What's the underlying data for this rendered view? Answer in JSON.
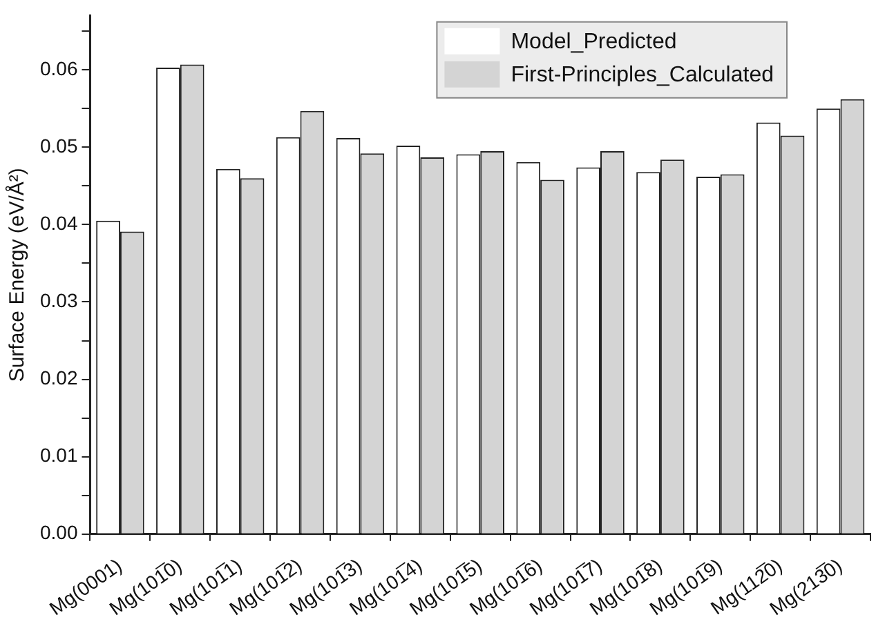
{
  "chart_data": {
    "type": "bar",
    "ylabel": "Surface Energy (eV/Å²)",
    "categories": [
      "Mg(0001)",
      "Mg(101̅0)",
      "Mg(101̅1)",
      "Mg(101̅2)",
      "Mg(101̅3)",
      "Mg(101̅4)",
      "Mg(101̅5)",
      "Mg(101̅6)",
      "Mg(101̅7)",
      "Mg(101̅8)",
      "Mg(101̅9)",
      "Mg(112̅0)",
      "Mg(213̅0)"
    ],
    "series": [
      {
        "name": "Model_Predicted",
        "color": "#ffffff",
        "values": [
          0.0405,
          0.0603,
          0.0472,
          0.0513,
          0.0512,
          0.0502,
          0.0491,
          0.0481,
          0.0474,
          0.0468,
          0.0462,
          0.0532,
          0.055
        ]
      },
      {
        "name": "First-Principles_Calculated",
        "color": "#d4d4d4",
        "values": [
          0.0391,
          0.0607,
          0.046,
          0.0547,
          0.0492,
          0.0487,
          0.0495,
          0.0458,
          0.0495,
          0.0484,
          0.0465,
          0.0515,
          0.0562
        ]
      }
    ],
    "ylim": [
      0,
      0.067
    ],
    "yticks": [
      {
        "value": 0,
        "label": "0.00"
      },
      {
        "value": 0.005,
        "label": null
      },
      {
        "value": 0.01,
        "label": "0.01"
      },
      {
        "value": 0.015,
        "label": null
      },
      {
        "value": 0.02,
        "label": "0.02"
      },
      {
        "value": 0.025,
        "label": null
      },
      {
        "value": 0.03,
        "label": "0.03"
      },
      {
        "value": 0.035,
        "label": null
      },
      {
        "value": 0.04,
        "label": "0.04"
      },
      {
        "value": 0.045,
        "label": null
      },
      {
        "value": 0.05,
        "label": "0.05"
      },
      {
        "value": 0.055,
        "label": null
      },
      {
        "value": 0.06,
        "label": "0.06"
      },
      {
        "value": 0.065,
        "label": null
      }
    ],
    "grid": false,
    "legend": "top right"
  }
}
